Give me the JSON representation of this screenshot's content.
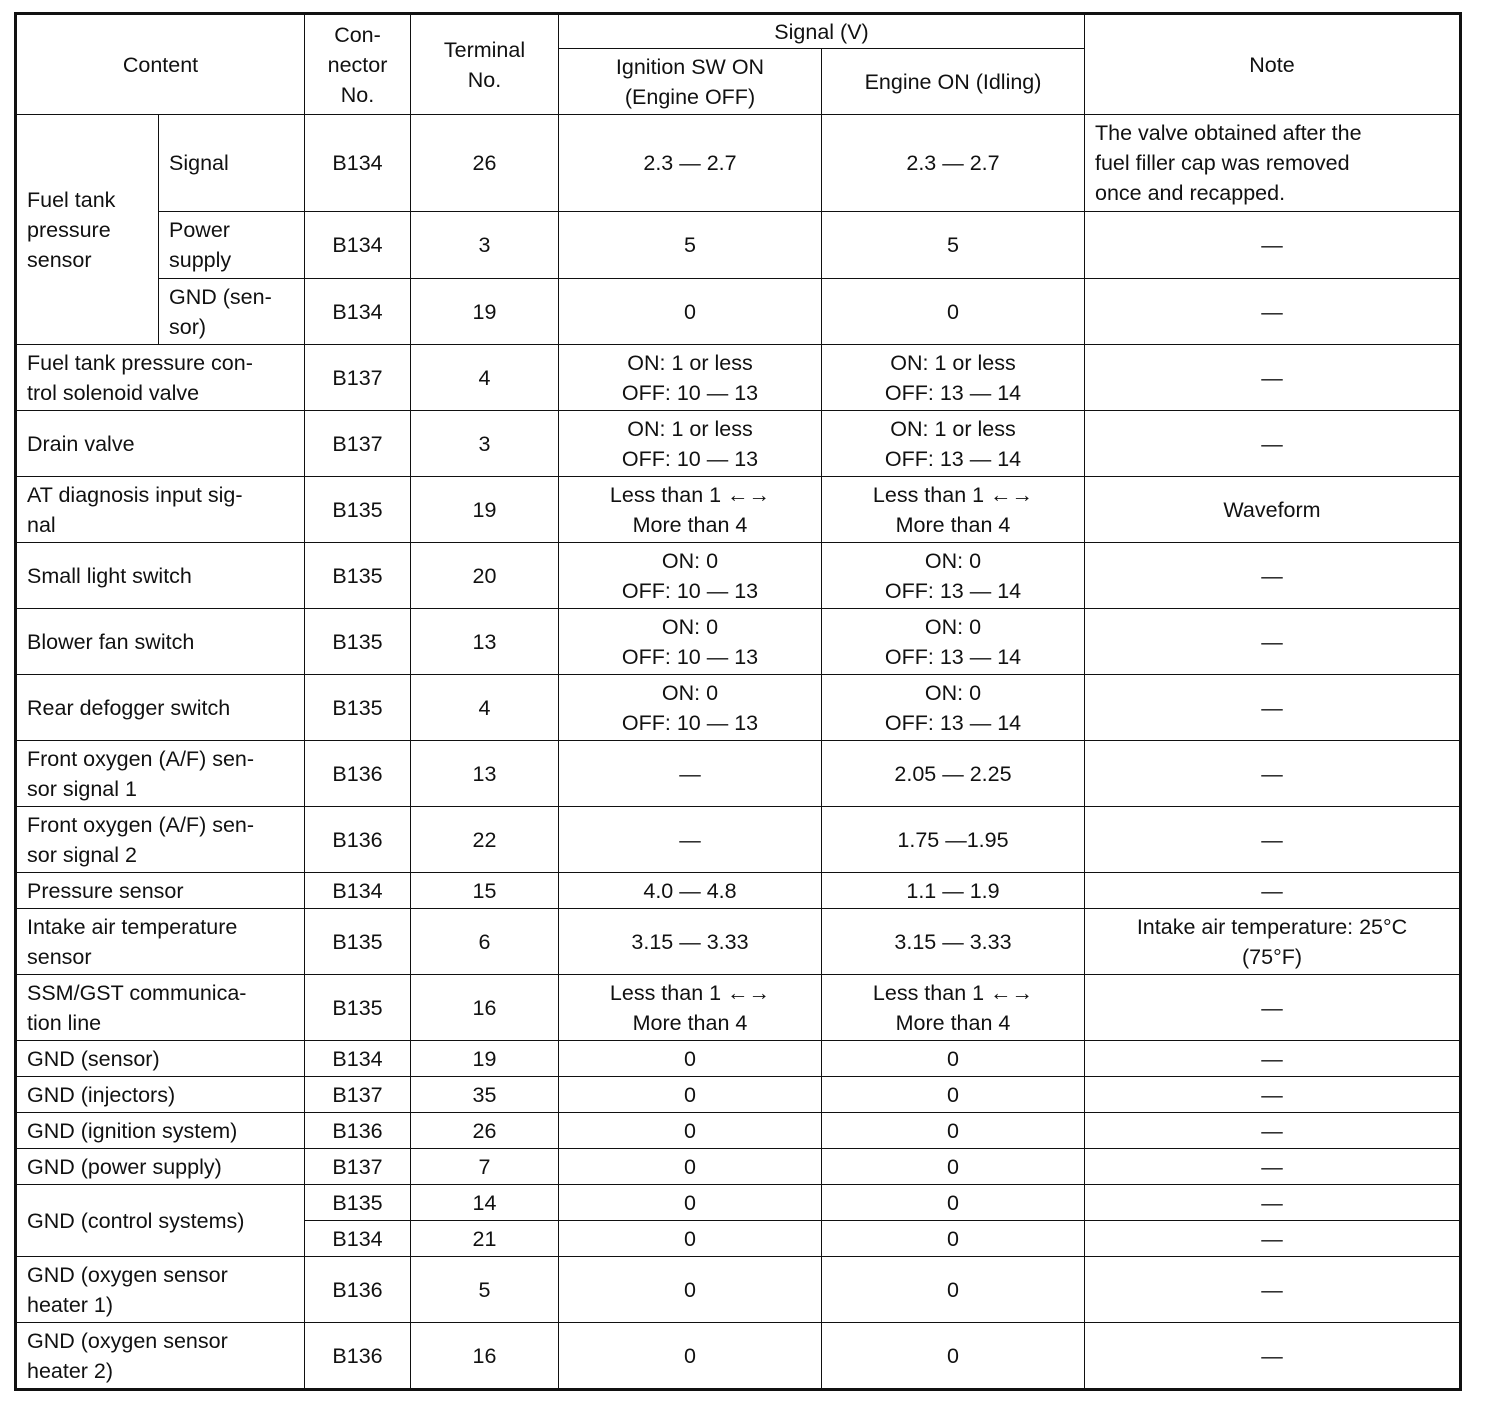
{
  "header": {
    "content": "Content",
    "connector": "Con-\nnector\nNo.",
    "terminal": "Terminal\nNo.",
    "signal": "Signal (V)",
    "ignition": "Ignition SW ON\n(Engine OFF)",
    "engine": "Engine ON (Idling)",
    "note": "Note"
  },
  "groups": [
    {
      "content": "Fuel tank\npressure\nsensor",
      "rows": [
        {
          "sub": "Signal",
          "connector": "B134",
          "terminal": "26",
          "ign": "2.3 — 2.7",
          "eng": "2.3 — 2.7",
          "note": "The valve obtained after the\nfuel filler cap was removed\nonce and recapped."
        },
        {
          "sub": "Power\nsupply",
          "connector": "B134",
          "terminal": "3",
          "ign": "5",
          "eng": "5",
          "note": "—"
        },
        {
          "sub": "GND (sen-\nsor)",
          "connector": "B134",
          "terminal": "19",
          "ign": "0",
          "eng": "0",
          "note": "—"
        }
      ]
    },
    {
      "content": "Fuel tank pressure con-\ntrol solenoid valve",
      "rows": [
        {
          "connector": "B137",
          "terminal": "4",
          "ign": "ON: 1 or less\nOFF: 10 — 13",
          "eng": "ON: 1 or less\nOFF: 13 — 14",
          "note": "—"
        }
      ]
    },
    {
      "content": "Drain valve",
      "rows": [
        {
          "connector": "B137",
          "terminal": "3",
          "ign": "ON: 1 or less\nOFF: 10 — 13",
          "eng": "ON: 1 or less\nOFF: 13 — 14",
          "note": "—"
        }
      ]
    },
    {
      "content": "AT diagnosis input sig-\nnal",
      "rows": [
        {
          "connector": "B135",
          "terminal": "19",
          "ign": "Less than 1 ←→\nMore than 4",
          "eng": "Less than 1 ←→\nMore than 4",
          "note": "Waveform"
        }
      ]
    },
    {
      "content": "Small light switch",
      "rows": [
        {
          "connector": "B135",
          "terminal": "20",
          "ign": "ON: 0\nOFF: 10 — 13",
          "eng": "ON: 0\nOFF: 13 — 14",
          "note": "—"
        }
      ]
    },
    {
      "content": "Blower fan switch",
      "rows": [
        {
          "connector": "B135",
          "terminal": "13",
          "ign": "ON: 0\nOFF: 10 — 13",
          "eng": "ON: 0\nOFF: 13 — 14",
          "note": "—"
        }
      ]
    },
    {
      "content": "Rear defogger switch",
      "rows": [
        {
          "connector": "B135",
          "terminal": "4",
          "ign": "ON: 0\nOFF: 10 — 13",
          "eng": "ON: 0\nOFF: 13 — 14",
          "note": "—"
        }
      ]
    },
    {
      "content": "Front oxygen (A/F) sen-\nsor signal 1",
      "rows": [
        {
          "connector": "B136",
          "terminal": "13",
          "ign": "—",
          "eng": "2.05 — 2.25",
          "note": "—"
        }
      ]
    },
    {
      "content": "Front oxygen (A/F) sen-\nsor signal 2",
      "rows": [
        {
          "connector": "B136",
          "terminal": "22",
          "ign": "—",
          "eng": "1.75 —1.95",
          "note": "—"
        }
      ]
    },
    {
      "content": "Pressure sensor",
      "rows": [
        {
          "connector": "B134",
          "terminal": "15",
          "ign": "4.0 — 4.8",
          "eng": "1.1 — 1.9",
          "note": "—"
        }
      ]
    },
    {
      "content": "Intake air temperature\nsensor",
      "rows": [
        {
          "connector": "B135",
          "terminal": "6",
          "ign": "3.15 — 3.33",
          "eng": "3.15 — 3.33",
          "note": "Intake air temperature: 25°C\n(75°F)"
        }
      ]
    },
    {
      "content": "SSM/GST communica-\ntion line",
      "rows": [
        {
          "connector": "B135",
          "terminal": "16",
          "ign": "Less than 1 ←→\nMore than 4",
          "eng": "Less than 1 ←→\nMore than 4",
          "note": "—"
        }
      ]
    },
    {
      "content": "GND (sensor)",
      "rows": [
        {
          "connector": "B134",
          "terminal": "19",
          "ign": "0",
          "eng": "0",
          "note": "—"
        }
      ]
    },
    {
      "content": "GND (injectors)",
      "rows": [
        {
          "connector": "B137",
          "terminal": "35",
          "ign": "0",
          "eng": "0",
          "note": "—"
        }
      ]
    },
    {
      "content": "GND (ignition system)",
      "rows": [
        {
          "connector": "B136",
          "terminal": "26",
          "ign": "0",
          "eng": "0",
          "note": "—"
        }
      ]
    },
    {
      "content": "GND (power supply)",
      "rows": [
        {
          "connector": "B137",
          "terminal": "7",
          "ign": "0",
          "eng": "0",
          "note": "—"
        }
      ]
    },
    {
      "content": "GND (control systems)",
      "rows": [
        {
          "connector": "B135",
          "terminal": "14",
          "ign": "0",
          "eng": "0",
          "note": "—"
        },
        {
          "connector": "B134",
          "terminal": "21",
          "ign": "0",
          "eng": "0",
          "note": "—"
        }
      ]
    },
    {
      "content": "GND (oxygen sensor\nheater 1)",
      "rows": [
        {
          "connector": "B136",
          "terminal": "5",
          "ign": "0",
          "eng": "0",
          "note": "—"
        }
      ]
    },
    {
      "content": "GND (oxygen sensor\nheater 2)",
      "rows": [
        {
          "connector": "B136",
          "terminal": "16",
          "ign": "0",
          "eng": "0",
          "note": "—"
        }
      ]
    }
  ]
}
